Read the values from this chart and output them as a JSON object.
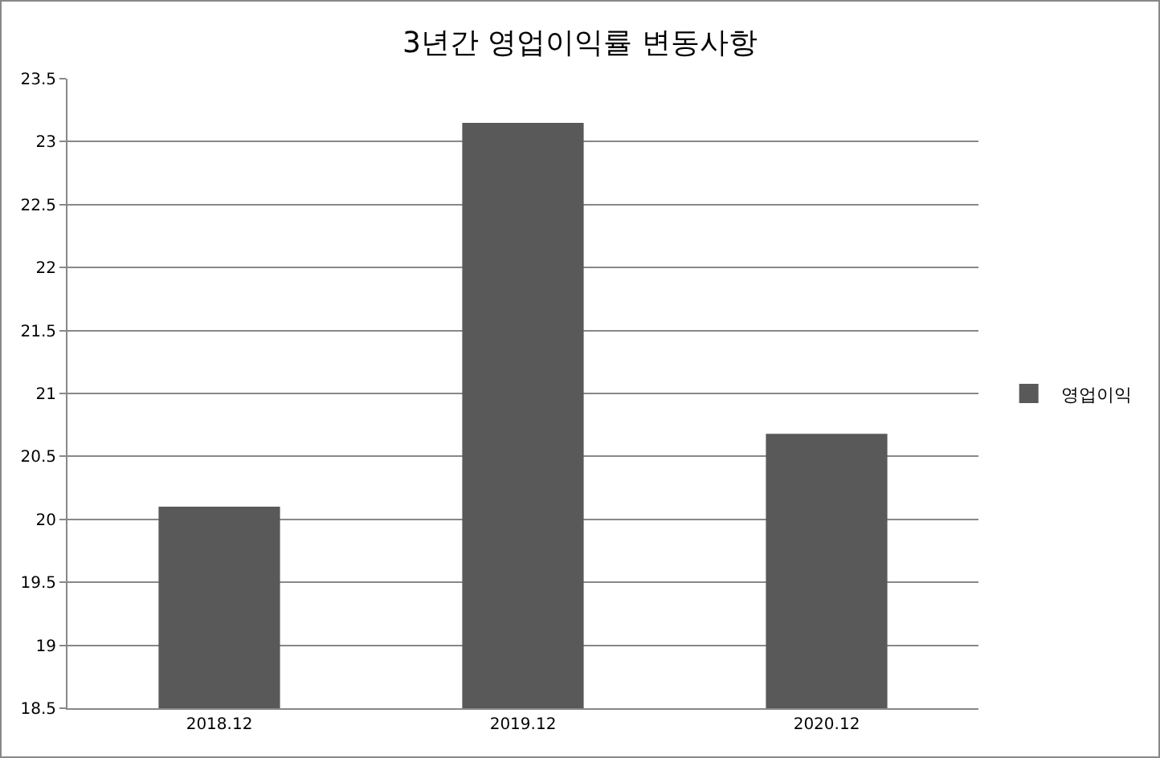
{
  "chart_data": {
    "type": "bar",
    "title": "3년간 영업이익률 변동사항",
    "categories": [
      "2018.12",
      "2019.12",
      "2020.12"
    ],
    "series": [
      {
        "name": "영업이익",
        "color": "#595959",
        "values": [
          20.1,
          23.15,
          20.68
        ]
      }
    ],
    "ylim": [
      18.5,
      23.5
    ],
    "yticks": [
      18.5,
      19,
      19.5,
      20,
      20.5,
      21,
      21.5,
      22,
      22.5,
      23,
      23.5
    ],
    "grid": "y",
    "legend": "right"
  }
}
